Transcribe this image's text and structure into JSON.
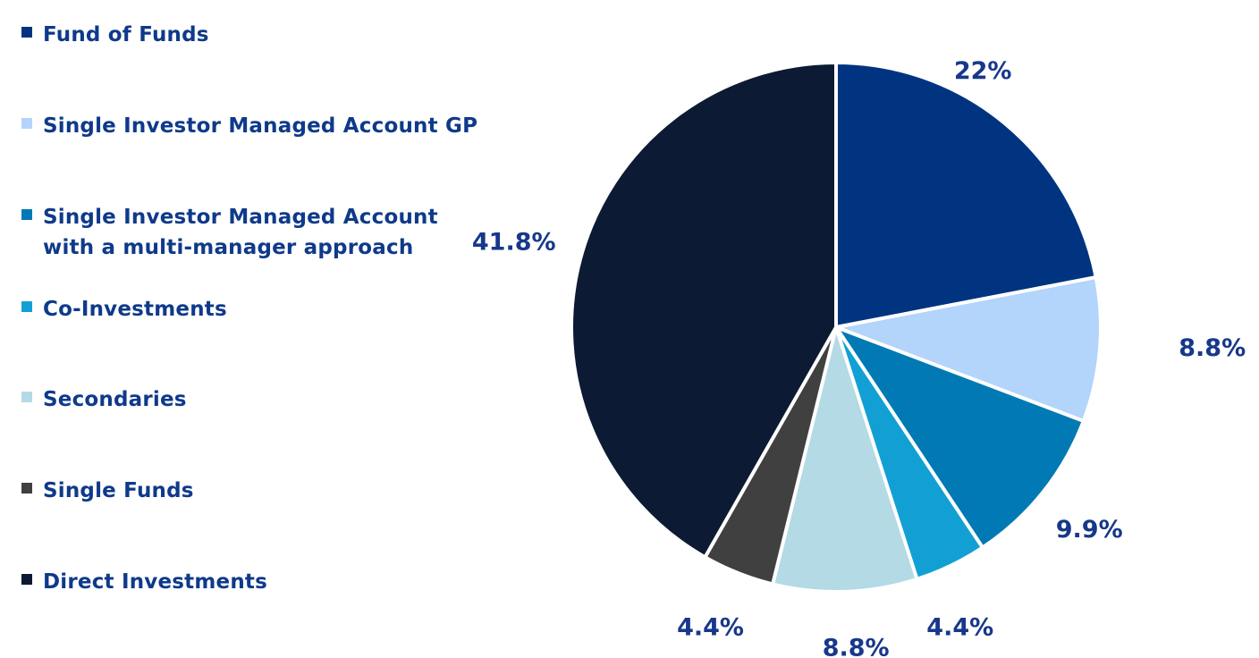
{
  "chart_data": {
    "type": "pie",
    "categories": [
      "Fund of Funds",
      "Single Investor Managed Account GP",
      "Single Investor Managed Account\nwith a multi-manager approach",
      "Co-Investments",
      "Secondaries",
      "Single Funds",
      "Direct Investments"
    ],
    "values": [
      22,
      8.8,
      9.9,
      4.4,
      8.8,
      4.4,
      41.8
    ],
    "value_labels": [
      "22%",
      "8.8%",
      "9.9%",
      "4.4%",
      "8.8%",
      "4.4%",
      "41.8%"
    ],
    "colors": [
      "#003480",
      "#b3d4fb",
      "#0079b4",
      "#12a0d4",
      "#b3dae5",
      "#404040",
      "#0d1a33"
    ],
    "legend_position": "left",
    "start": "12 o'clock, clockwise"
  }
}
